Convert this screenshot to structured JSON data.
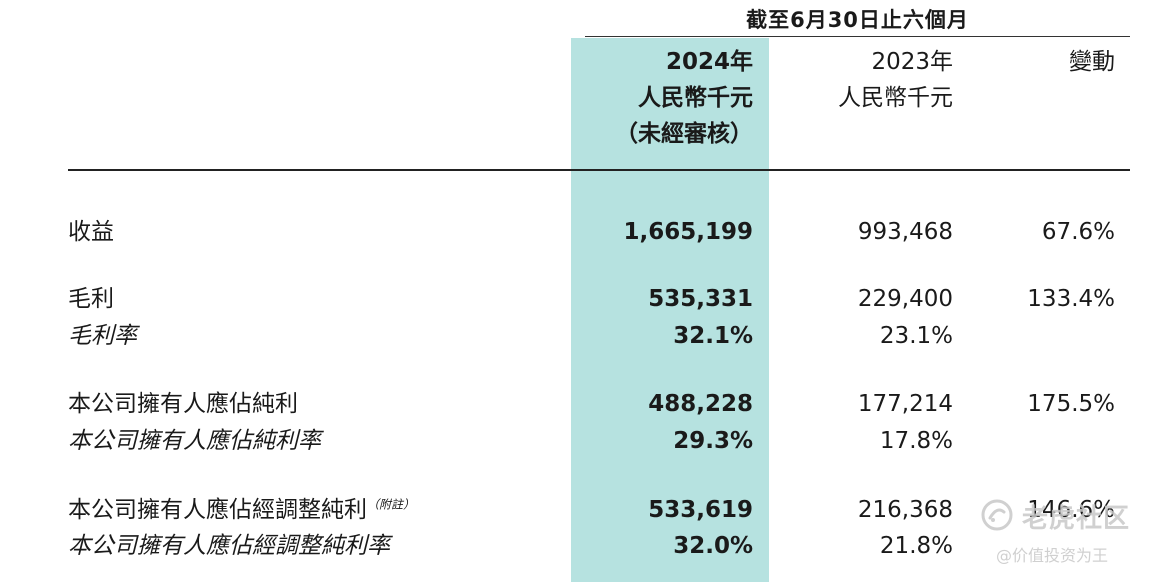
{
  "table": {
    "period_header": "截至6月30日止六個月",
    "columns": {
      "y2024": [
        "2024年",
        "人民幣千元",
        "（未經審核）"
      ],
      "y2023": [
        "2023年",
        "人民幣千元"
      ],
      "change": [
        "變動"
      ]
    },
    "rows": [
      {
        "label": "收益",
        "italic": false,
        "note": "",
        "y2024": "1,665,199",
        "y2023": "993,468",
        "change": "67.6%"
      },
      {
        "label": "毛利",
        "italic": false,
        "note": "",
        "y2024": "535,331",
        "y2023": "229,400",
        "change": "133.4%"
      },
      {
        "label": "毛利率",
        "italic": true,
        "note": "",
        "y2024": "32.1%",
        "y2023": "23.1%",
        "change": ""
      },
      {
        "label": "本公司擁有人應佔純利",
        "italic": false,
        "note": "",
        "y2024": "488,228",
        "y2023": "177,214",
        "change": "175.5%"
      },
      {
        "label": "本公司擁有人應佔純利率",
        "italic": true,
        "note": "",
        "y2024": "29.3%",
        "y2023": "17.8%",
        "change": ""
      },
      {
        "label": "本公司擁有人應佔經調整純利",
        "italic": false,
        "note": "（附註）",
        "y2024": "533,619",
        "y2023": "216,368",
        "change": "146.6%"
      },
      {
        "label": "本公司擁有人應佔經調整純利率",
        "italic": true,
        "note": "",
        "y2024": "32.0%",
        "y2023": "21.8%",
        "change": ""
      }
    ]
  },
  "watermark": {
    "title": "老虎社区",
    "subtitle": "@价值投资为王"
  },
  "colors": {
    "highlight": "#b6e2e0",
    "text": "#1a1a1a",
    "watermark": "#c8c8c8"
  }
}
